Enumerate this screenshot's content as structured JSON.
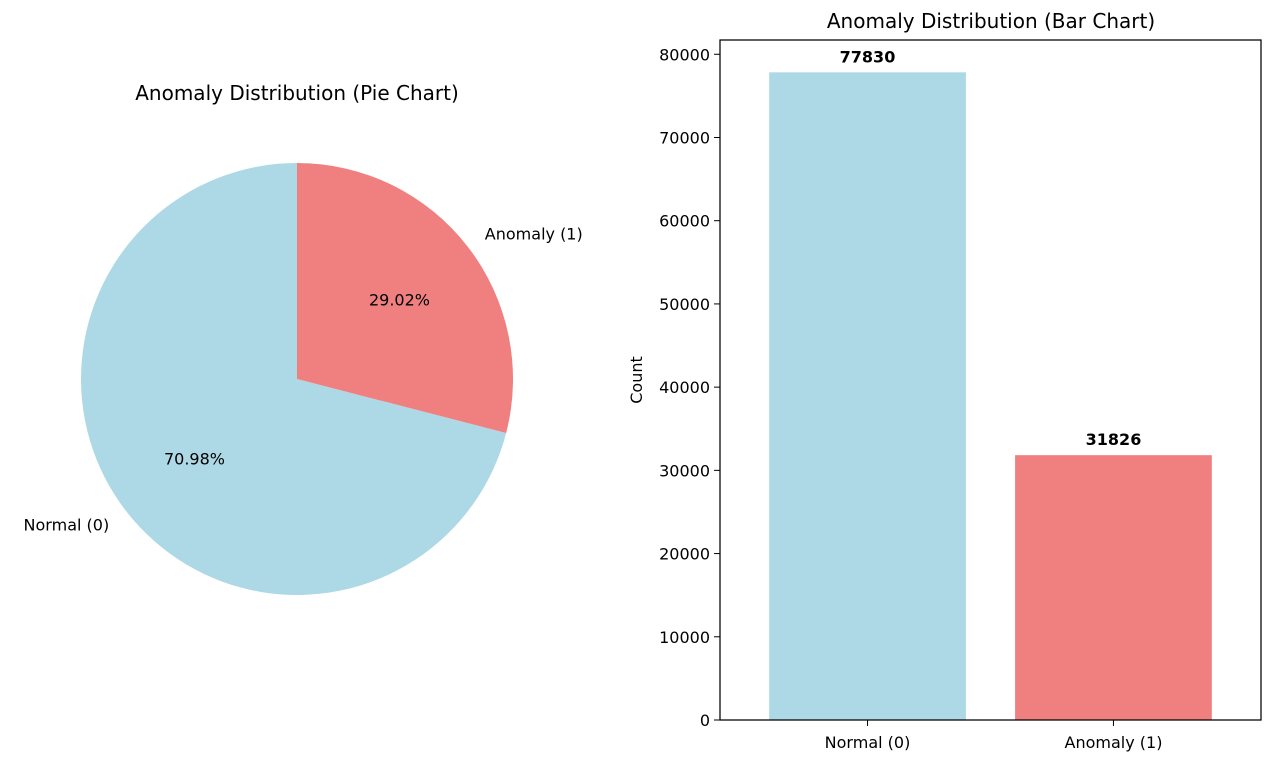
{
  "chart_data": [
    {
      "type": "pie",
      "title": "Anomaly Distribution (Pie Chart)",
      "labels": [
        "Normal (0)",
        "Anomaly (1)"
      ],
      "values": [
        70.98,
        29.02
      ],
      "autopct_labels": [
        "70.98%",
        "29.02%"
      ],
      "colors": [
        "#add8e6",
        "#f08080"
      ],
      "start_angle_deg": 90,
      "direction": "counterclockwise"
    },
    {
      "type": "bar",
      "title": "Anomaly Distribution (Bar Chart)",
      "xlabel": "",
      "ylabel": "Count",
      "categories": [
        "Normal (0)",
        "Anomaly (1)"
      ],
      "values": [
        77830,
        31826
      ],
      "value_labels": [
        "77830",
        "31826"
      ],
      "colors": [
        "#add8e6",
        "#f08080"
      ],
      "ylim": [
        0,
        81715
      ],
      "yticks": [
        0,
        10000,
        20000,
        30000,
        40000,
        50000,
        60000,
        70000,
        80000
      ],
      "grid": false
    }
  ]
}
